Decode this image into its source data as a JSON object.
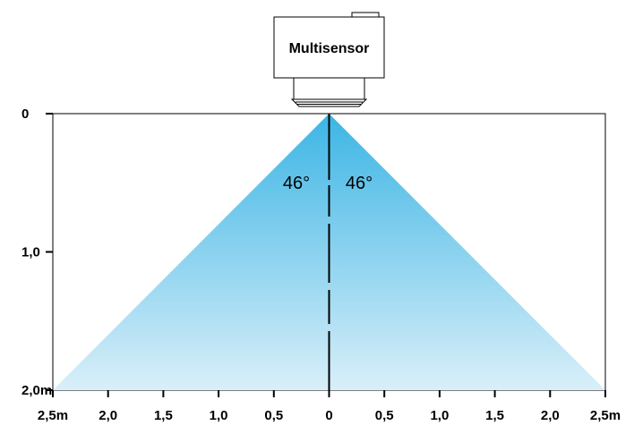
{
  "sensor": {
    "label": "Multisensor"
  },
  "detection_cone": {
    "angle_left": "46°",
    "angle_right": "46°",
    "max_range": 2.5,
    "max_depth": 2.0
  },
  "x_axis": {
    "ticks": [
      {
        "value": -2.5,
        "label": "2,5m"
      },
      {
        "value": -2.0,
        "label": "2,0"
      },
      {
        "value": -1.5,
        "label": "1,5"
      },
      {
        "value": -1.0,
        "label": "1,0"
      },
      {
        "value": -0.5,
        "label": "0,5"
      },
      {
        "value": 0,
        "label": "0"
      },
      {
        "value": 0.5,
        "label": "0,5"
      },
      {
        "value": 1.0,
        "label": "1,0"
      },
      {
        "value": 1.5,
        "label": "1,5"
      },
      {
        "value": 2.0,
        "label": "2,0"
      },
      {
        "value": 2.5,
        "label": "2,5m"
      }
    ]
  },
  "y_axis": {
    "ticks": [
      {
        "value": 0,
        "label": "0"
      },
      {
        "value": 1.0,
        "label": "1,0"
      },
      {
        "value": 2.0,
        "label": "2,0m"
      }
    ]
  },
  "colors": {
    "cone_top": "#3cb5e5",
    "cone_bottom": "#d9eff9",
    "stroke": "#000000"
  }
}
